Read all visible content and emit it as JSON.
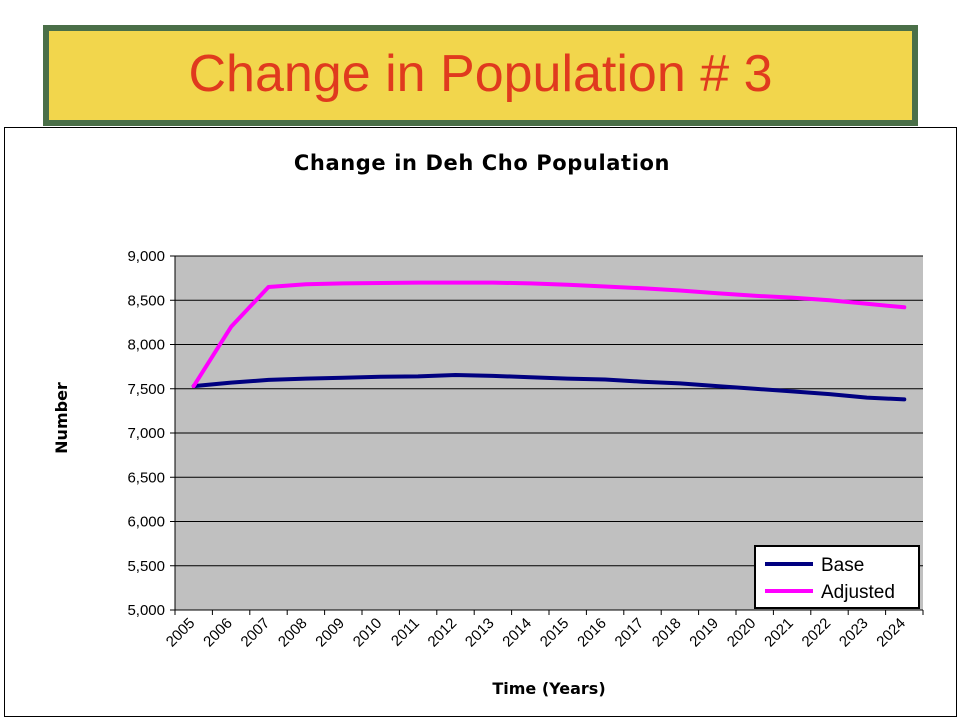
{
  "slide": {
    "title": "Change in Population # 3"
  },
  "colors": {
    "banner_bg": "#f2d64c",
    "banner_border": "#4a6f48",
    "title_text": "#e03a1e",
    "plot_bg": "#c0c0c0"
  },
  "chart_data": {
    "type": "line",
    "title": "Change in Deh Cho Population",
    "xlabel": "Time (Years)",
    "ylabel": "Number",
    "ylim": [
      5000,
      9000
    ],
    "ytick_step": 500,
    "grid": true,
    "legend_position": "bottom-right",
    "categories": [
      "2005",
      "2006",
      "2007",
      "2008",
      "2009",
      "2010",
      "2011",
      "2012",
      "2013",
      "2014",
      "2015",
      "2016",
      "2017",
      "2018",
      "2019",
      "2020",
      "2021",
      "2022",
      "2023",
      "2024"
    ],
    "series": [
      {
        "name": "Base",
        "color": "#000080",
        "values": [
          7530,
          7570,
          7600,
          7615,
          7625,
          7635,
          7640,
          7655,
          7645,
          7630,
          7615,
          7605,
          7580,
          7560,
          7530,
          7500,
          7470,
          7440,
          7400,
          7380
        ]
      },
      {
        "name": "Adjusted",
        "color": "#ff00ff",
        "values": [
          7530,
          8200,
          8650,
          8680,
          8690,
          8695,
          8700,
          8700,
          8700,
          8690,
          8675,
          8655,
          8635,
          8610,
          8580,
          8550,
          8530,
          8500,
          8460,
          8420
        ]
      }
    ]
  }
}
